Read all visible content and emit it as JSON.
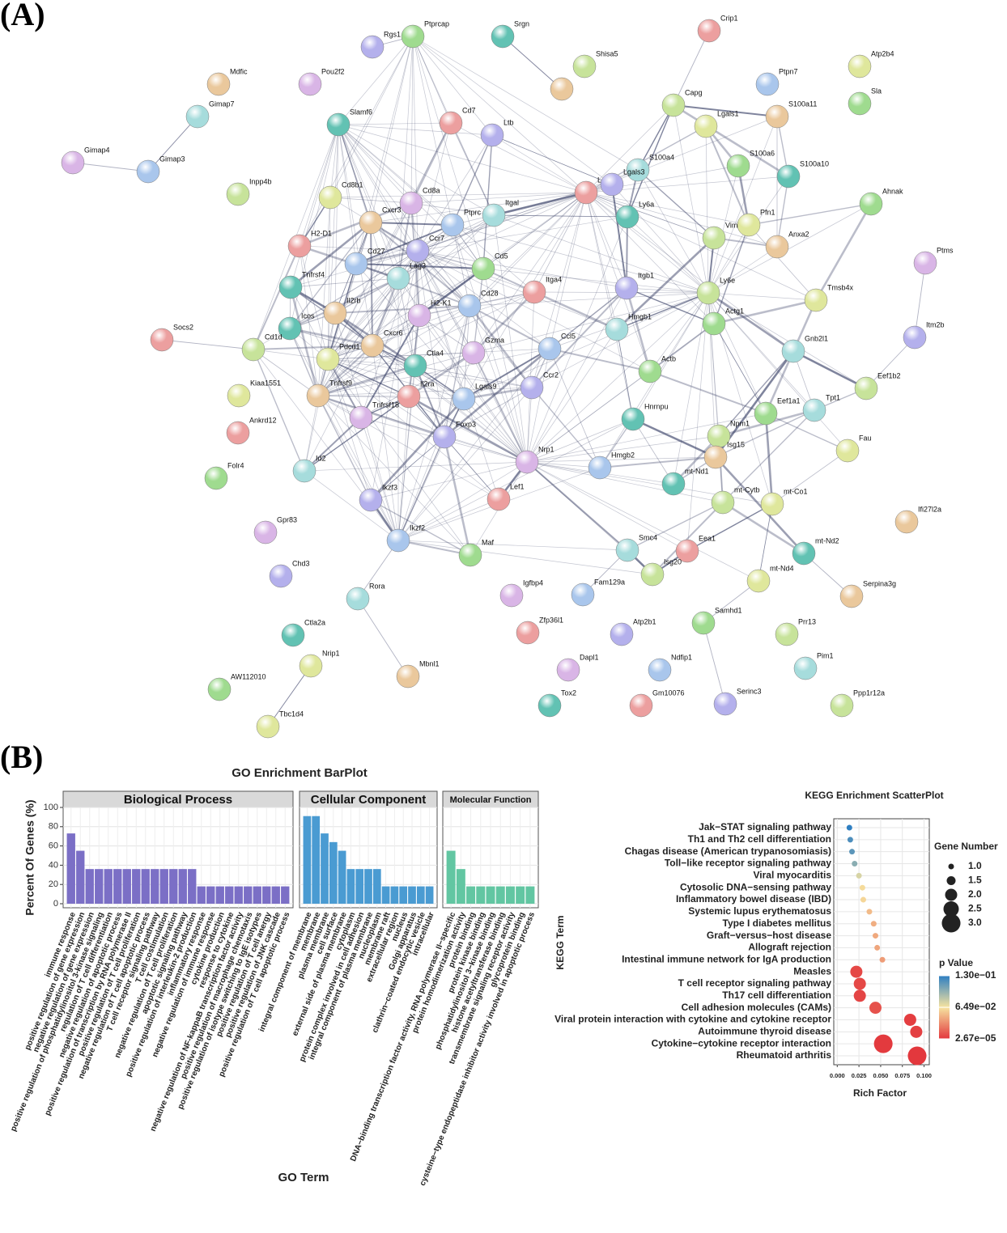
{
  "panels": {
    "a_label": "(A)",
    "b_label": "(B)"
  },
  "network": {
    "nodes": [
      "Ptprcap",
      "Srgn",
      "Crip1",
      "Rgs1",
      "Shisa5",
      "Atp2b4",
      "Mdfic",
      "Pou2f2",
      "Ptpn7",
      "Gimap7",
      "Sla",
      "Slamf6",
      "Cd7",
      "Ltb",
      "Capg",
      "Lgals1",
      "S100a11",
      "Gimap4",
      "Gimap3",
      "S100a4",
      "S100a6",
      "S100a10",
      "Lcp1",
      "Lgals3",
      "Inpp4b",
      "Cd8b1",
      "Cxcr3",
      "Cd8a",
      "Ptprc",
      "Itgal",
      "Ahnak",
      "Ly6a",
      "H2-D1",
      "Ccr7",
      "Vim",
      "Pfn1",
      "Anxa2",
      "Ptms",
      "Cd27",
      "Lag3",
      "Cd5",
      "Tnfrsf4",
      "Itga4",
      "Itgb1",
      "Ly6e",
      "Tmsb4x",
      "Il2rb",
      "H2-K1",
      "Cd28",
      "Hmgb1",
      "Actg1",
      "Icos",
      "Socs2",
      "Itm2b",
      "Cd1d",
      "Pdcd1",
      "Cxcr6",
      "Gzma",
      "Ccl5",
      "Gnb2l1",
      "Actb",
      "Ctla4",
      "Il2ra",
      "Ccr2",
      "Eef1b2",
      "Kiaa1551",
      "Tnfrsf9",
      "Tnfrsf18",
      "Lgals9",
      "Tpt1",
      "Eef1a1",
      "Hnrnpu",
      "Ankrd12",
      "Foxp3",
      "Npm1",
      "Fau",
      "Isg15",
      "Nrp1",
      "Hmgb2",
      "Id2",
      "Folr4",
      "mt-Nd1",
      "Lef1",
      "Ikzf3",
      "mt-Cytb",
      "mt-Co1",
      "Ifi27l2a",
      "Gpr83",
      "Ikzf2",
      "Smc4",
      "Maf",
      "mt-Nd2",
      "Eea1",
      "Chd3",
      "Isg20",
      "mt-Nd4",
      "Serpina3g",
      "Igfbp4",
      "Fam129a",
      "Rora",
      "Samhd1",
      "Ctla2a",
      "Zfp36l1",
      "Atp2b1",
      "Prr13",
      "Nrip1",
      "Mbnl1",
      "Dapl1",
      "Ndfip1",
      "Pim1",
      "AW112010",
      "Tox2",
      "Gm10076",
      "Serinc3",
      "Ppp1r12a",
      "Tbc1d4"
    ]
  },
  "chart_data": [
    {
      "type": "bar",
      "title": "GO Enrichment BarPlot",
      "xlabel": "GO Term",
      "ylabel": "Percent Of Genes (%)",
      "ylim": [
        0,
        100
      ],
      "yticks": [
        0,
        20,
        40,
        60,
        80,
        100
      ],
      "grid": true,
      "facets": [
        {
          "name": "Biological Process",
          "color": "#7b6fc6",
          "categories": [
            "immune response",
            "positive regulation of gene expression",
            "negative regulation of gene expression",
            "positive regulation of phosphatidylinositol 3-kinase signaling",
            "regulation of T cell differentiation",
            "negative regulation of apoptotic process",
            "positive regulation of transcription by RNA polymerase II",
            "positive regulation of T cell proliferation",
            "negative regulation of T cell apoptotic process",
            "T cell receptor signaling pathway",
            "T cell costimulation",
            "negative regulation of T cell proliferation",
            "apoptotic signaling pathway",
            "positive regulation of interleukin-2 production",
            "inflammatory response",
            "negative regulation of immune response",
            "cytokine production",
            "response to cytokine",
            "negative regulation of NF-kappaB transcription factor activity",
            "positive regulation of macrophage chemotaxis",
            "positive regulation of isotype switching to IgE isotypes",
            "positive regulation of T cell anergy",
            "positive regulation of JNK cascade",
            "positive regulation of T cell apoptotic process"
          ],
          "values": [
            73,
            55,
            36,
            36,
            36,
            36,
            36,
            36,
            36,
            36,
            36,
            36,
            36,
            36,
            18,
            18,
            18,
            18,
            18,
            18,
            18,
            18,
            18,
            18
          ]
        },
        {
          "name": "Cellular Component",
          "color": "#4a9bd2",
          "categories": [
            "integral component of membrane",
            "membrane",
            "plasma membrane",
            "cell surface",
            "external side of plasma membrane",
            "cytoplasm",
            "protein complex involved in cell adhesion",
            "integral component of plasma membrane",
            "nucleoplasm",
            "membrane raft",
            "extracellular region",
            "nucleus",
            "Golgi apparatus",
            "clathrin−coated endocytic vesicle",
            "intracellular"
          ],
          "values": [
            91,
            91,
            73,
            64,
            55,
            36,
            36,
            36,
            36,
            18,
            18,
            18,
            18,
            18,
            18
          ]
        },
        {
          "name": "Molecular Function",
          "color": "#62c6a2",
          "categories": [
            "DNA−binding transcription factor activity, RNA polymerase II−specific",
            "protein homodimerization activity",
            "protein binding",
            "protein kinase binding",
            "phosphatidylinositol 3−kinase binding",
            "histone acetyltransferase binding",
            "transmembrane signaling receptor activity",
            "glycoprotein binding",
            "cysteine−type endopeptidase inhibitor activity involved in apoptotic process"
          ],
          "values": [
            55,
            36,
            18,
            18,
            18,
            18,
            18,
            18,
            18
          ]
        }
      ]
    },
    {
      "type": "scatter",
      "title": "KEGG Enrichment ScatterPlot",
      "xlabel": "Rich Factor",
      "ylabel": "KEGG Term",
      "categories": [
        "Jak−STAT signaling pathway",
        "Th1 and Th2 cell differentiation",
        "Chagas disease (American trypanosomiasis)",
        "Toll−like receptor signaling pathway",
        "Viral myocarditis",
        "Cytosolic DNA−sensing pathway",
        "Inflammatory bowel disease (IBD)",
        "Systemic lupus erythematosus",
        "Type I diabetes mellitus",
        "Graft−versus−host disease",
        "Allograft rejection",
        "Intestinal immune network for IgA production",
        "Measles",
        "T cell receptor signaling pathway",
        "Th17 cell differentiation",
        "Cell adhesion molecules (CAMs)",
        "Viral protein interaction with cytokine and cytokine receptor",
        "Autoimmune thyroid disease",
        "Cytokine−cytokine receptor interaction",
        "Rheumatoid arthritis"
      ],
      "values": [
        0.014,
        0.015,
        0.017,
        0.02,
        0.025,
        0.029,
        0.03,
        0.037,
        0.042,
        0.044,
        0.046,
        0.052,
        0.022,
        0.026,
        0.026,
        0.044,
        0.084,
        0.091,
        0.053,
        0.092
      ],
      "sizes": [
        1,
        1,
        1,
        1,
        1,
        1,
        1,
        1,
        1,
        1,
        1,
        1,
        2,
        2,
        2,
        2,
        2,
        2,
        3,
        3
      ],
      "pvalues": [
        0.13,
        0.12,
        0.115,
        0.1,
        0.075,
        0.062,
        0.06,
        0.05,
        0.045,
        0.043,
        0.042,
        0.038,
        0.006,
        0.006,
        0.005,
        0.01,
        0.002,
        0.003,
        0.0006,
        0.0001
      ],
      "xlim": [
        -0.004,
        0.106
      ],
      "xticks": [
        {
          "value": 0,
          "label": "0.000"
        },
        {
          "value": 0.025,
          "label": "0.025"
        },
        {
          "value": 0.05,
          "label": "0.050"
        },
        {
          "value": 0.075,
          "label": "0.075"
        },
        {
          "value": 0.1,
          "label": "0.100"
        }
      ],
      "grid": true,
      "size_legend": {
        "title": "Gene Number",
        "ticks": [
          {
            "value": 1,
            "label": "1.0"
          },
          {
            "value": 1.5,
            "label": "1.5"
          },
          {
            "value": 2,
            "label": "2.0"
          },
          {
            "value": 2.5,
            "label": "2.5"
          },
          {
            "value": 3,
            "label": "3.0"
          }
        ]
      },
      "color_legend": {
        "title": "p Value",
        "lim": [
          2.67e-05,
          0.13
        ],
        "colors": [
          "#e3383d",
          "#f6e3a0",
          "#2e7fc2"
        ],
        "ticks": [
          {
            "value": 0.13,
            "label": "1.30e−01"
          },
          {
            "value": 0.0649,
            "label": "6.49e−02"
          },
          {
            "value": 2.67e-05,
            "label": "2.67e−05"
          }
        ]
      }
    }
  ]
}
